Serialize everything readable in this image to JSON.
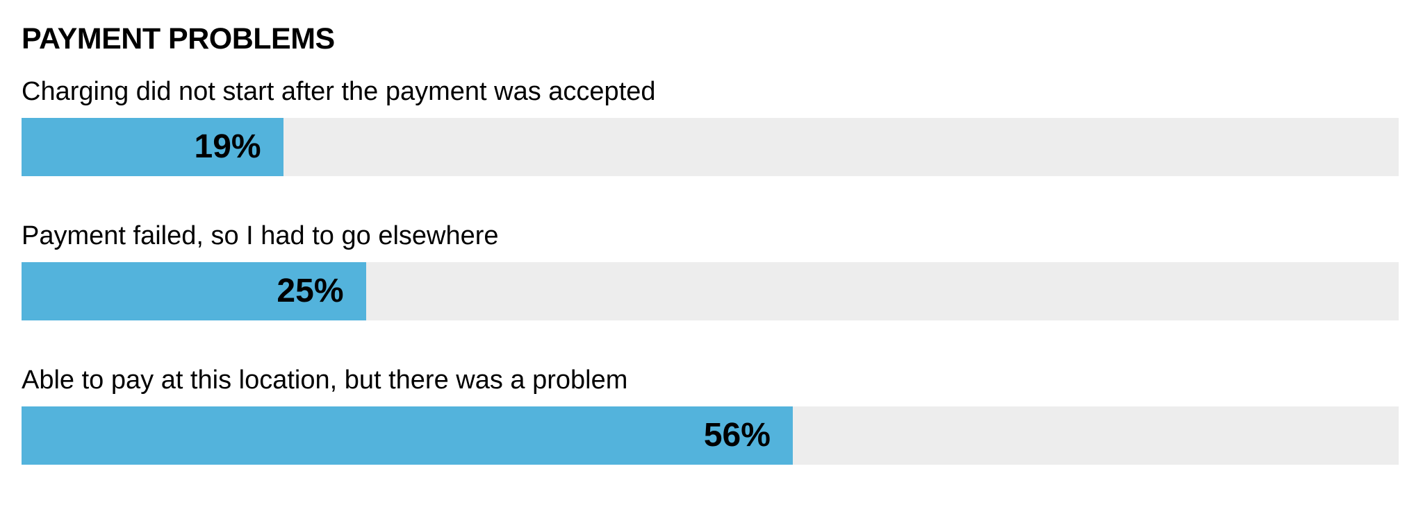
{
  "chart_data": {
    "type": "bar",
    "orientation": "horizontal",
    "title": "PAYMENT PROBLEMS",
    "categories": [
      "Charging did not start after the payment was accepted",
      "Payment failed, so I had to go elsewhere",
      "Able to pay at this location, but there was a problem"
    ],
    "values": [
      19,
      25,
      56
    ],
    "value_labels": [
      "19%",
      "25%",
      "56%"
    ],
    "xlim": [
      0,
      100
    ],
    "grid": false,
    "legend": "none",
    "colors": {
      "bar": "#53b3dc",
      "track": "#ededed",
      "text": "#000000"
    }
  }
}
